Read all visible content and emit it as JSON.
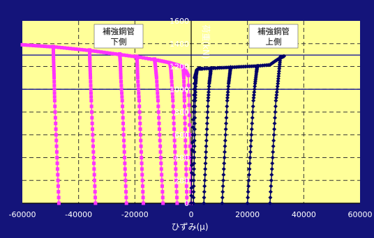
{
  "chart_data": {
    "type": "scatter",
    "xlabel": "ひずみ(μ)",
    "ylabel": "荷重(kN)",
    "xlim": [
      -60000,
      60000
    ],
    "ylim": [
      0,
      1600
    ],
    "xticks": [
      "-60000",
      "-40000",
      "-20000",
      "0",
      "20000",
      "40000",
      "60000"
    ],
    "yticks": [
      "0",
      "200",
      "400",
      "600",
      "800",
      "1000",
      "1200",
      "1400",
      "1600"
    ],
    "reference_lines_y": [
      1000,
      1300
    ],
    "annotations": [
      {
        "text": [
          "補強鋼管",
          "下側"
        ]
      },
      {
        "text": [
          "補強鋼管",
          "上側"
        ]
      }
    ],
    "colors": {
      "plot_bg": "#ffff99",
      "outer_bg": "#14147a",
      "series_lower": "#ff33ff",
      "series_upper": "#000066",
      "ref_line": "#000099"
    },
    "series": [
      {
        "marker": "square",
        "color": "#ff33ff",
        "x": [
          -60000,
          -54000,
          -48000,
          -42000,
          -36000,
          -30000,
          -24000,
          -18000,
          -12000,
          -8000,
          -6000,
          -4000,
          -2500,
          -1000,
          -500,
          0
        ],
        "y": [
          1390,
          1380,
          1370,
          1355,
          1340,
          1320,
          1300,
          1280,
          1255,
          1235,
          1220,
          1205,
          1185,
          1120,
          600,
          0
        ],
        "unloading": [
          {
            "x": [
              -47000,
              -47500,
              -48000,
              -48500,
              -48700,
              -48900,
              -49000
            ],
            "y": [
              0,
              300,
              600,
              900,
              1100,
              1250,
              1375
            ]
          },
          {
            "x": [
              -34000,
              -34500,
              -35000,
              -35500,
              -35800,
              -36000,
              -36100
            ],
            "y": [
              0,
              300,
              600,
              900,
              1100,
              1250,
              1345
            ]
          },
          {
            "x": [
              -23000,
              -23500,
              -24000,
              -24500,
              -25000,
              -25200,
              -25400
            ],
            "y": [
              0,
              300,
              600,
              900,
              1100,
              1250,
              1310
            ]
          },
          {
            "x": [
              -17000,
              -17500,
              -18000,
              -18500,
              -19000,
              -19200,
              -19400
            ],
            "y": [
              0,
              300,
              600,
              900,
              1100,
              1250,
              1290
            ]
          },
          {
            "x": [
              -10000,
              -10600,
              -11200,
              -11800,
              -12300,
              -12700,
              -13000
            ],
            "y": [
              0,
              300,
              600,
              900,
              1100,
              1200,
              1265
            ]
          },
          {
            "x": [
              -5000,
              -5500,
              -6000,
              -6500,
              -7000,
              -7300,
              -7500
            ],
            "y": [
              0,
              300,
              600,
              900,
              1100,
              1200,
              1225
            ]
          },
          {
            "x": [
              -1500,
              -1800,
              -2100,
              -2400,
              -2600,
              -2800,
              -3000
            ],
            "y": [
              0,
              300,
              600,
              900,
              1100,
              1180,
              1200
            ]
          }
        ]
      },
      {
        "marker": "diamond",
        "color": "#000066",
        "x": [
          0,
          300,
          800,
          1200,
          2000,
          2500,
          4000,
          8000,
          12000,
          16000,
          20000,
          24000,
          28000,
          30000,
          32000,
          33000
        ],
        "y": [
          0,
          400,
          800,
          1100,
          1170,
          1180,
          1180,
          1185,
          1190,
          1195,
          1200,
          1205,
          1215,
          1250,
          1280,
          1290
        ],
        "unloading": [
          {
            "x": [
              800,
              1000,
              1200,
              1400,
              1600,
              1800,
              2000
            ],
            "y": [
              0,
              300,
              600,
              900,
              1050,
              1130,
              1170
            ]
          },
          {
            "x": [
              4500,
              5000,
              5500,
              6000,
              6400,
              6800,
              7000
            ],
            "y": [
              0,
              300,
              600,
              900,
              1050,
              1130,
              1185
            ]
          },
          {
            "x": [
              11000,
              11600,
              12200,
              12800,
              13300,
              13700,
              14000
            ],
            "y": [
              0,
              300,
              600,
              900,
              1050,
              1130,
              1195
            ]
          },
          {
            "x": [
              20000,
              20700,
              21400,
              22100,
              22700,
              23200,
              23500
            ],
            "y": [
              0,
              300,
              600,
              900,
              1050,
              1150,
              1205
            ]
          },
          {
            "x": [
              28000,
              28700,
              29400,
              30100,
              30800,
              31300,
              31700
            ],
            "y": [
              0,
              300,
              600,
              900,
              1050,
              1180,
              1285
            ]
          }
        ]
      }
    ]
  }
}
